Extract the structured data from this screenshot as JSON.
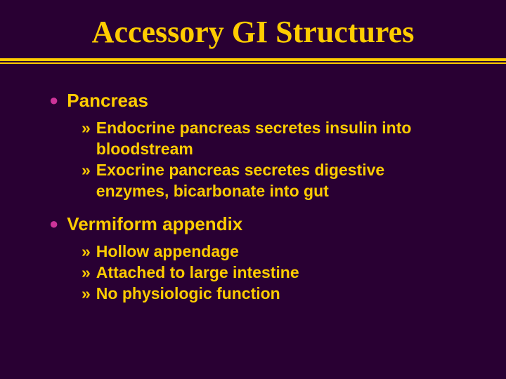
{
  "slide": {
    "title": "Accessory GI Structures",
    "background_color": "#290033",
    "accent_color": "#ffcc00",
    "bullet_color": "#cc3399",
    "title_font": "Times New Roman",
    "title_fontsize": 44,
    "body_font": "Arial",
    "l1_fontsize": 26,
    "l2_fontsize": 23,
    "items": [
      {
        "label": "Pancreas",
        "sub": [
          "Endocrine pancreas secretes insulin into bloodstream",
          "Exocrine pancreas secretes digestive enzymes,  bicarbonate into gut"
        ]
      },
      {
        "label": "Vermiform appendix",
        "sub": [
          "Hollow appendage",
          "Attached to large intestine",
          "No physiologic function"
        ]
      }
    ]
  }
}
